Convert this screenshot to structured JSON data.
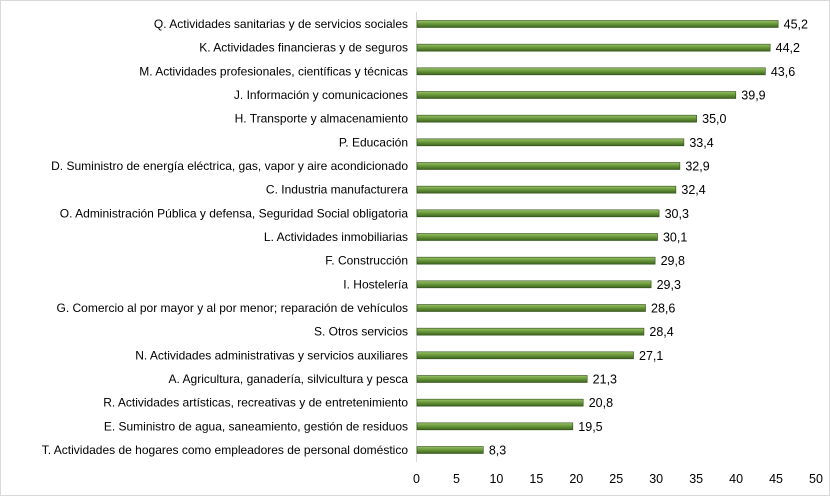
{
  "chart_data": {
    "type": "bar",
    "orientation": "horizontal",
    "categories": [
      "Q. Actividades sanitarias y de servicios sociales",
      "K. Actividades financieras y de seguros",
      "M. Actividades profesionales, científicas y técnicas",
      "J. Información y comunicaciones",
      "H. Transporte y almacenamiento",
      "P. Educación",
      "D. Suministro de energía eléctrica, gas, vapor y aire acondicionado",
      "C. Industria manufacturera",
      "O. Administración Pública y defensa, Seguridad Social obligatoria",
      "L. Actividades inmobiliarias",
      "F. Construcción",
      "I. Hostelería",
      "G. Comercio al por mayor y al por menor; reparación de vehículos",
      "S. Otros servicios",
      "N. Actividades administrativas y servicios auxiliares",
      "A. Agricultura, ganadería, silvicultura y pesca",
      "R. Actividades artísticas, recreativas y de entretenimiento",
      "E. Suministro de agua, saneamiento, gestión de residuos",
      "T. Actividades de hogares como empleadores de personal doméstico"
    ],
    "values": [
      45.2,
      44.2,
      43.6,
      39.9,
      35.0,
      33.4,
      32.9,
      32.4,
      30.3,
      30.1,
      29.8,
      29.3,
      28.6,
      28.4,
      27.1,
      21.3,
      20.8,
      19.5,
      8.3
    ],
    "data_labels": [
      "45,2",
      "44,2",
      "43,6",
      "39,9",
      "35,0",
      "33,4",
      "32,9",
      "32,4",
      "30,3",
      "30,1",
      "29,8",
      "29,3",
      "28,6",
      "28,4",
      "27,1",
      "21,3",
      "20,8",
      "19,5",
      "8,3"
    ],
    "xlim": [
      0,
      50
    ],
    "x_ticks": [
      "0",
      "5",
      "10",
      "15",
      "20",
      "25",
      "30",
      "35",
      "40",
      "45",
      "50"
    ],
    "grid": false,
    "legend": "none",
    "bar_color": "#4f7a28"
  }
}
